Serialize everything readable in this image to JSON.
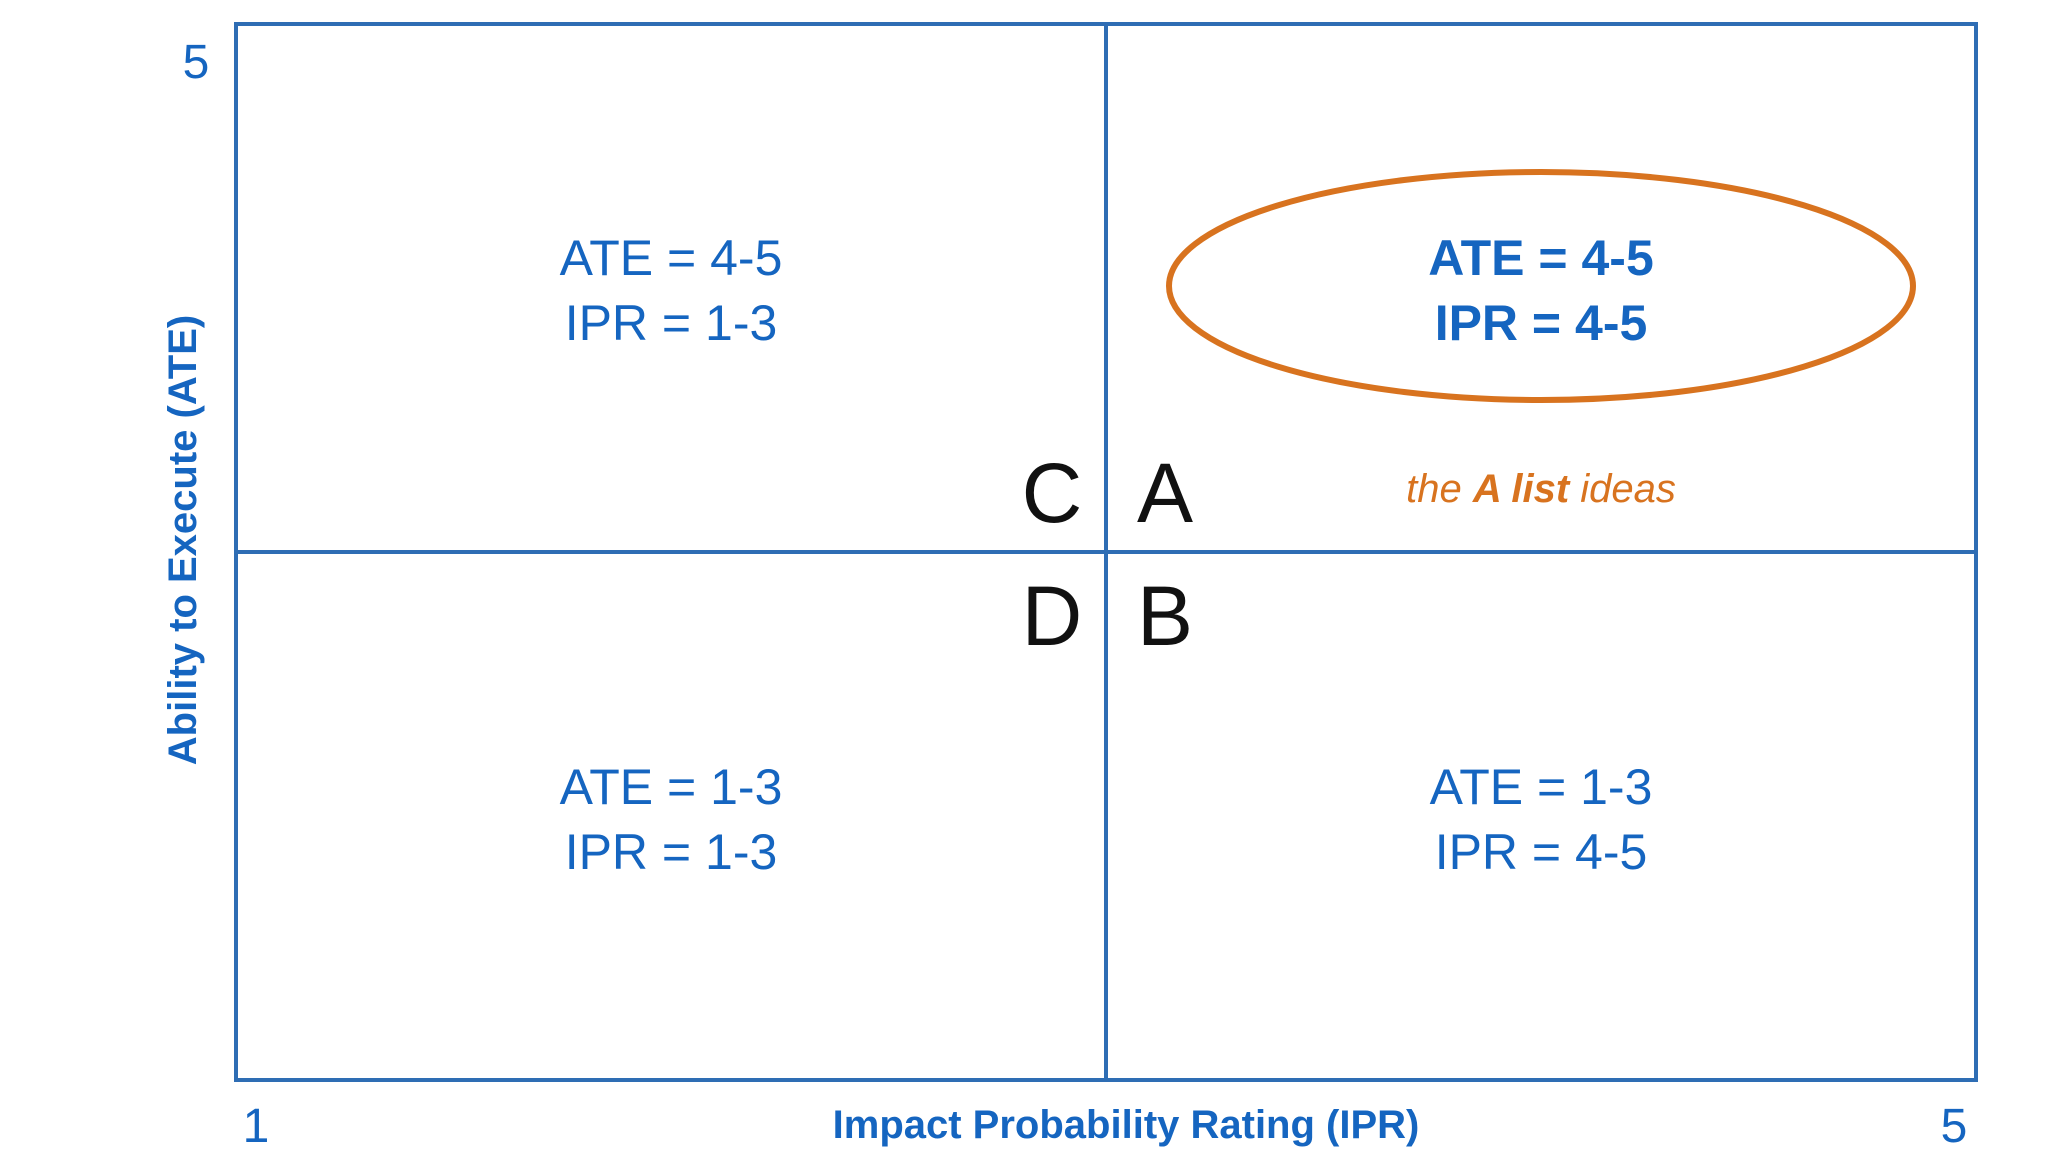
{
  "colors": {
    "accent_blue": "#1565c0",
    "grid_blue": "#2e6db4",
    "highlight_orange": "#d8731f",
    "letter_black": "#111111"
  },
  "axes": {
    "y_label": "Ability to Execute (ATE)",
    "x_label": "Impact Probability Rating (IPR)",
    "y_max_tick": "5",
    "x_min_tick": "1",
    "x_max_tick": "5"
  },
  "quadrants": {
    "top_left": {
      "line1": "ATE = 4-5",
      "line2": "IPR = 1-3"
    },
    "top_right": {
      "line1": "ATE = 4-5",
      "line2": "IPR = 4-5"
    },
    "bottom_left": {
      "line1": "ATE = 1-3",
      "line2": "IPR = 1-3"
    },
    "bottom_right": {
      "line1": "ATE = 1-3",
      "line2": "IPR = 4-5"
    }
  },
  "letters": {
    "c": "C",
    "a": "A",
    "d": "D",
    "b": "B"
  },
  "highlight_note": {
    "prefix": "the ",
    "emphasis": "A list",
    "suffix": " ideas"
  }
}
